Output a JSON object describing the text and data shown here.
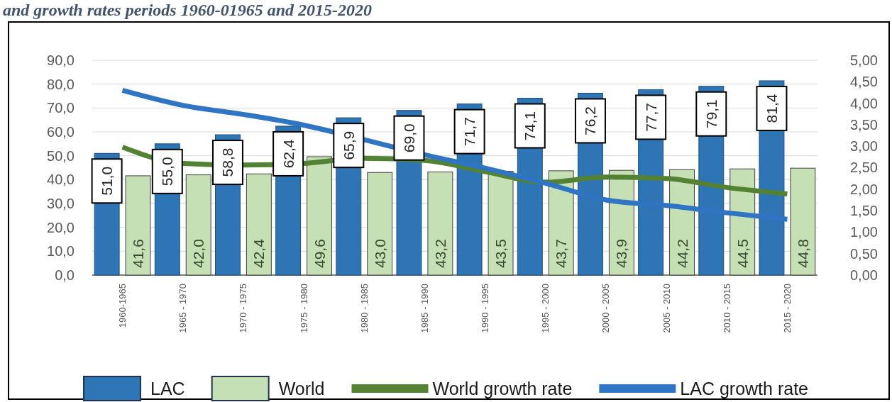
{
  "chart_data": {
    "type": "bar",
    "title": "and growth rates periods 1960-01965 and 2015-2020",
    "categories": [
      "1960-1965",
      "1965 - 1970",
      "1970 - 1975",
      "1975 - 1980",
      "1980 - 1985",
      "1985 - 1990",
      "1990 - 1995",
      "1995 - 2000",
      "2000 - 2005",
      "2005 - 2010",
      "2010 - 2015",
      "2015 - 2020"
    ],
    "series": [
      {
        "name": "LAC",
        "color": "#2e75b6",
        "values": [
          51.0,
          55.0,
          58.8,
          62.4,
          65.9,
          69.0,
          71.7,
          74.1,
          76.2,
          77.7,
          79.1,
          81.4
        ],
        "value_labels": [
          "51,0",
          "55,0",
          "58,8",
          "62,4",
          "65,9",
          "69,0",
          "71,7",
          "74,1",
          "76,2",
          "77,7",
          "79,1",
          "81,4"
        ]
      },
      {
        "name": "World",
        "color": "#c5e0b4",
        "values": [
          41.6,
          42.0,
          42.4,
          49.6,
          43.0,
          43.2,
          43.5,
          43.7,
          43.9,
          44.2,
          44.5,
          44.8
        ],
        "value_labels": [
          "41,6",
          "42,0",
          "42,4",
          "49,6",
          "43,0",
          "43,2",
          "43,5",
          "43,7",
          "43,9",
          "44,2",
          "44,5",
          "44,8"
        ]
      },
      {
        "name": "World growth rate",
        "type": "line",
        "axis": "y2",
        "color": "#548235",
        "values": [
          2.98,
          2.6,
          2.56,
          2.6,
          2.72,
          2.67,
          2.41,
          2.16,
          2.28,
          2.25,
          2.04,
          1.89
        ]
      },
      {
        "name": "LAC growth rate",
        "type": "line",
        "axis": "y2",
        "color": "#2f75c4",
        "values": [
          4.3,
          3.95,
          3.74,
          3.49,
          3.15,
          2.8,
          2.49,
          2.14,
          1.75,
          1.62,
          1.45,
          1.3
        ]
      }
    ],
    "ylim": [
      0,
      90
    ],
    "yticks": [
      {
        "value": 0,
        "label": "0,0"
      },
      {
        "value": 10,
        "label": "10,0"
      },
      {
        "value": 20,
        "label": "20,0"
      },
      {
        "value": 30,
        "label": "30,0"
      },
      {
        "value": 40,
        "label": "40,0"
      },
      {
        "value": 50,
        "label": "50,0"
      },
      {
        "value": 60,
        "label": "60,0"
      },
      {
        "value": 70,
        "label": "70,0"
      },
      {
        "value": 80,
        "label": "80,0"
      },
      {
        "value": 90,
        "label": "90,0"
      }
    ],
    "y2lim": [
      0,
      5
    ],
    "y2ticks": [
      {
        "value": 0,
        "label": "0,00"
      },
      {
        "value": 0.5,
        "label": "0,50"
      },
      {
        "value": 1,
        "label": "1,00"
      },
      {
        "value": 1.5,
        "label": "1,50"
      },
      {
        "value": 2,
        "label": "2,00"
      },
      {
        "value": 2.5,
        "label": "2,50"
      },
      {
        "value": 3,
        "label": "3,00"
      },
      {
        "value": 3.5,
        "label": "3,50"
      },
      {
        "value": 4,
        "label": "4,00"
      },
      {
        "value": 4.5,
        "label": "4,50"
      },
      {
        "value": 5,
        "label": "5,00"
      }
    ],
    "grid": "y",
    "legend": "bottom",
    "marker": "none",
    "line_style": "solid"
  }
}
